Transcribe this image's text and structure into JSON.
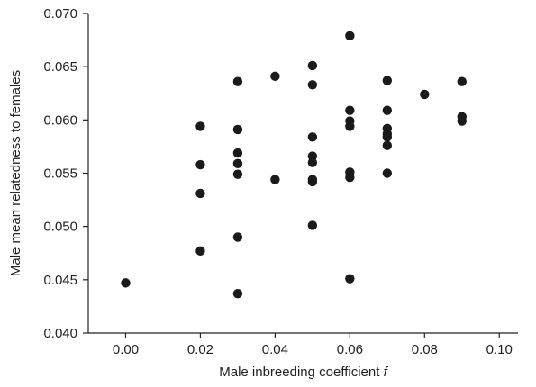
{
  "chart_data": {
    "type": "scatter",
    "title": "",
    "xlabel": "Male inbreeding coefficient",
    "xlabel_italic": "f",
    "ylabel": "Male mean relatedness to females",
    "xlim": [
      -0.01,
      0.105
    ],
    "ylim": [
      0.04,
      0.07
    ],
    "xticks": [
      0.0,
      0.02,
      0.04,
      0.06,
      0.08,
      0.1
    ],
    "xtick_labels": [
      "0.00",
      "0.02",
      "0.04",
      "0.06",
      "0.08",
      "0.10"
    ],
    "yticks": [
      0.04,
      0.045,
      0.05,
      0.055,
      0.06,
      0.065,
      0.07
    ],
    "ytick_labels": [
      "0.040",
      "0.045",
      "0.050",
      "0.055",
      "0.060",
      "0.065",
      "0.070"
    ],
    "grid": false,
    "point_color": "#1a1a1a",
    "points": [
      {
        "x": 0.0,
        "y": 0.0447
      },
      {
        "x": 0.02,
        "y": 0.0594
      },
      {
        "x": 0.02,
        "y": 0.0558
      },
      {
        "x": 0.02,
        "y": 0.0531
      },
      {
        "x": 0.02,
        "y": 0.0477
      },
      {
        "x": 0.03,
        "y": 0.0636
      },
      {
        "x": 0.03,
        "y": 0.0591
      },
      {
        "x": 0.03,
        "y": 0.0569
      },
      {
        "x": 0.03,
        "y": 0.0559
      },
      {
        "x": 0.03,
        "y": 0.0549
      },
      {
        "x": 0.03,
        "y": 0.049
      },
      {
        "x": 0.03,
        "y": 0.0437
      },
      {
        "x": 0.04,
        "y": 0.0641
      },
      {
        "x": 0.04,
        "y": 0.0544
      },
      {
        "x": 0.05,
        "y": 0.0651
      },
      {
        "x": 0.05,
        "y": 0.0633
      },
      {
        "x": 0.05,
        "y": 0.0584
      },
      {
        "x": 0.05,
        "y": 0.0566
      },
      {
        "x": 0.05,
        "y": 0.056
      },
      {
        "x": 0.05,
        "y": 0.0544
      },
      {
        "x": 0.05,
        "y": 0.0542
      },
      {
        "x": 0.05,
        "y": 0.0501
      },
      {
        "x": 0.06,
        "y": 0.0679
      },
      {
        "x": 0.06,
        "y": 0.0609
      },
      {
        "x": 0.06,
        "y": 0.0599
      },
      {
        "x": 0.06,
        "y": 0.0594
      },
      {
        "x": 0.06,
        "y": 0.0551
      },
      {
        "x": 0.06,
        "y": 0.0546
      },
      {
        "x": 0.06,
        "y": 0.0451
      },
      {
        "x": 0.07,
        "y": 0.0637
      },
      {
        "x": 0.07,
        "y": 0.0609
      },
      {
        "x": 0.07,
        "y": 0.0592
      },
      {
        "x": 0.07,
        "y": 0.0587
      },
      {
        "x": 0.07,
        "y": 0.0584
      },
      {
        "x": 0.07,
        "y": 0.0576
      },
      {
        "x": 0.07,
        "y": 0.055
      },
      {
        "x": 0.08,
        "y": 0.0624
      },
      {
        "x": 0.09,
        "y": 0.0636
      },
      {
        "x": 0.09,
        "y": 0.0603
      },
      {
        "x": 0.09,
        "y": 0.0599
      }
    ]
  }
}
